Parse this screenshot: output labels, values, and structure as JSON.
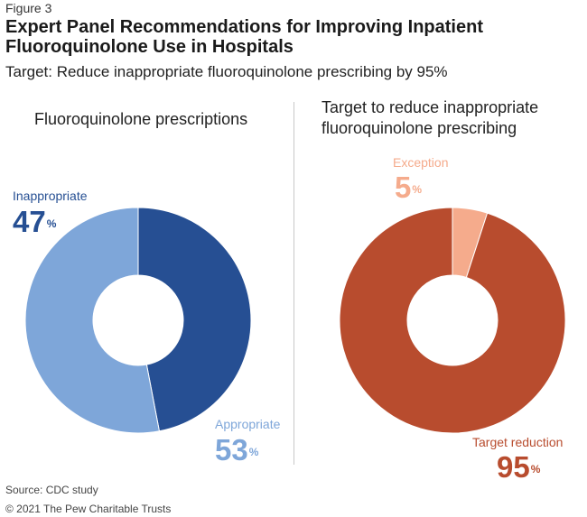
{
  "figure_label": "Figure 3",
  "title": "Expert Panel Recommendations for Improving Inpatient Fluoroquinolone Use in Hospitals",
  "subtitle": "Target: Reduce inappropriate fluoroquinolone prescribing by 95%",
  "source": "Source: CDC study",
  "copyright": "© 2021 The Pew Charitable Trusts",
  "colors": {
    "inappropriate": "#264f93",
    "appropriate": "#7ea6d9",
    "exception": "#f5ab8c",
    "target_reduction": "#b84c2e"
  },
  "chart_data": [
    {
      "type": "pie",
      "donut": true,
      "title": "Fluoroquinolone prescriptions",
      "unit": "%",
      "slices": [
        {
          "label": "Inappropriate",
          "value": 47,
          "color": "#264f93"
        },
        {
          "label": "Appropriate",
          "value": 53,
          "color": "#7ea6d9"
        }
      ]
    },
    {
      "type": "pie",
      "donut": true,
      "title": "Target to reduce inappropriate fluoroquinolone prescribing",
      "unit": "%",
      "slices": [
        {
          "label": "Exception",
          "value": 5,
          "color": "#f5ab8c"
        },
        {
          "label": "Target reduction",
          "value": 95,
          "color": "#b84c2e"
        }
      ]
    }
  ]
}
